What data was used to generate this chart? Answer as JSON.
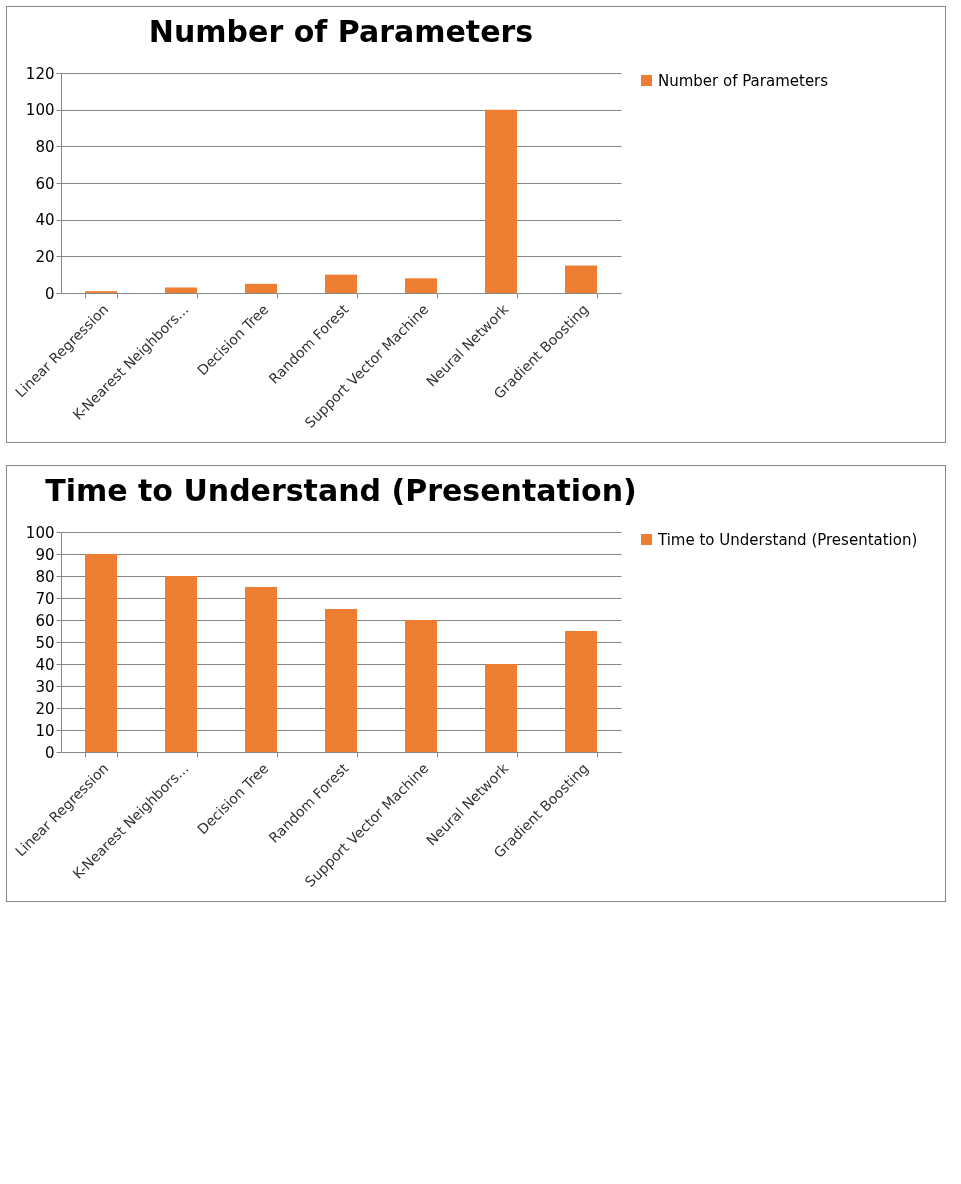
{
  "chart_data": [
    {
      "type": "bar",
      "title": "Number of Parameters",
      "categories": [
        "Linear Regression",
        "K-Nearest Neighbors...",
        "Decision Tree",
        "Random Forest",
        "Support Vector Machine",
        "Neural Network",
        "Gradient Boosting"
      ],
      "series": [
        {
          "name": "Number of Parameters",
          "color": "#ed7d31",
          "values": [
            1,
            3,
            5,
            10,
            8,
            100,
            15
          ]
        }
      ],
      "ylim": [
        0,
        120
      ],
      "yticks": [
        0,
        20,
        40,
        60,
        80,
        100,
        120
      ],
      "grid": "y",
      "legend": "right"
    },
    {
      "type": "bar",
      "title": "Time to Understand (Presentation)",
      "categories": [
        "Linear Regression",
        "K-Nearest Neighbors...",
        "Decision Tree",
        "Random Forest",
        "Support Vector Machine",
        "Neural Network",
        "Gradient Boosting"
      ],
      "series": [
        {
          "name": "Time to Understand (Presentation)",
          "color": "#ed7d31",
          "values": [
            90,
            80,
            75,
            65,
            60,
            40,
            55
          ]
        }
      ],
      "ylim": [
        0,
        100
      ],
      "yticks": [
        0,
        10,
        20,
        30,
        40,
        50,
        60,
        70,
        80,
        90,
        100
      ],
      "grid": "y",
      "legend": "right"
    }
  ]
}
